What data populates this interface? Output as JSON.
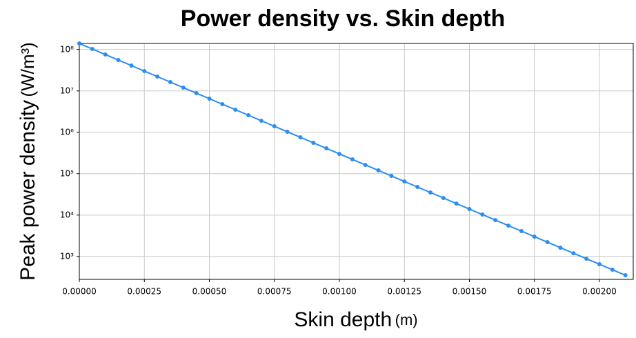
{
  "chart_data": {
    "type": "line",
    "title": "Power density vs. Skin depth",
    "xlabel": "Skin depth",
    "xlabel_unit": "(m)",
    "ylabel": "Peak power density",
    "ylabel_unit": "(W/m³)",
    "x": [
      0,
      5e-05,
      0.0001,
      0.00015,
      0.0002,
      0.00025,
      0.0003,
      0.00035,
      0.0004,
      0.00045,
      0.0005,
      0.00055,
      0.0006,
      0.00065,
      0.0007,
      0.00075,
      0.0008,
      0.00085,
      0.0009,
      0.00095,
      0.001,
      0.00105,
      0.0011,
      0.00115,
      0.0012,
      0.00125,
      0.0013,
      0.00135,
      0.0014,
      0.00145,
      0.0015,
      0.00155,
      0.0016,
      0.00165,
      0.0017,
      0.00175,
      0.0018,
      0.00185,
      0.0019,
      0.00195,
      0.002,
      0.00205,
      0.0021
    ],
    "series": [
      {
        "name": "Peak power density",
        "color": "#2b8ef0",
        "values": [
          140000000,
          103000000,
          75700000,
          55700000,
          41000000,
          30100000,
          22200000,
          16300000,
          12000000,
          8830000,
          6500000,
          4780000,
          3520000,
          2590000,
          1900000,
          1400000,
          1030000,
          757000,
          557000,
          410000,
          301000,
          222000,
          163000,
          120000,
          88300,
          65000,
          47800,
          35200,
          25900,
          19000,
          14000,
          10300,
          7570,
          5570,
          4100,
          3010,
          2220,
          1630,
          1200,
          883,
          650,
          478,
          352
        ]
      }
    ],
    "xlim": [
      0,
      0.00213
    ],
    "xticks": [
      {
        "value": 0,
        "label": "0.00000"
      },
      {
        "value": 0.00025,
        "label": "0.00025"
      },
      {
        "value": 0.0005,
        "label": "0.00050"
      },
      {
        "value": 0.00075,
        "label": "0.00075"
      },
      {
        "value": 0.001,
        "label": "0.00100"
      },
      {
        "value": 0.00125,
        "label": "0.00125"
      },
      {
        "value": 0.0015,
        "label": "0.00150"
      },
      {
        "value": 0.00175,
        "label": "0.00175"
      },
      {
        "value": 0.002,
        "label": "0.00200"
      }
    ],
    "ylim": [
      280,
      140000000
    ],
    "yticks": [
      {
        "value": 1000,
        "label": "10³"
      },
      {
        "value": 10000,
        "label": "10⁴"
      },
      {
        "value": 100000,
        "label": "10⁵"
      },
      {
        "value": 1000000,
        "label": "10⁶"
      },
      {
        "value": 10000000,
        "label": "10⁷"
      },
      {
        "value": 100000000,
        "label": "10⁸"
      }
    ],
    "ylog": true,
    "grid": true
  }
}
